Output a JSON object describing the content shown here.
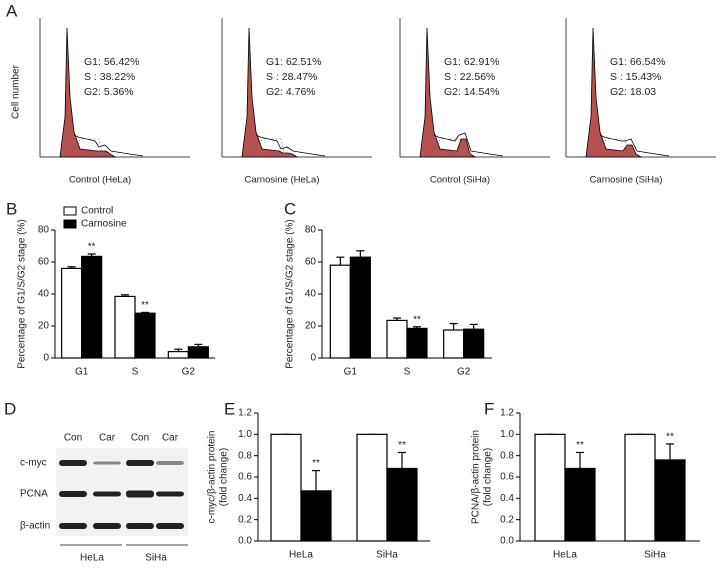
{
  "panel_a": {
    "label": "A",
    "y_label": "Cell number",
    "plots": [
      {
        "caption": "Control (HeLa)",
        "lines": [
          "G1: 56.42%",
          "S  : 38.22%",
          "G2: 5.36%"
        ]
      },
      {
        "caption": "Carnosine (HeLa)",
        "lines": [
          "G1: 62.51%",
          "S  : 28.47%",
          "G2: 4.76%"
        ]
      },
      {
        "caption": "Control (SiHa)",
        "lines": [
          "G1: 62.91%",
          "S  : 22.56%",
          "G2: 14.54%"
        ]
      },
      {
        "caption": "Carnosine (SiHa)",
        "lines": [
          "G1: 66.54%",
          "S  : 15.43%",
          "G2: 18.03"
        ]
      }
    ]
  },
  "panel_d": {
    "label": "D",
    "lanes": [
      "Con",
      "Car",
      "Con",
      "Car"
    ],
    "rows": [
      "c-myc",
      "PCNA",
      "β-actin"
    ],
    "groups": [
      "HeLa",
      "SiHa"
    ]
  },
  "chart_data": [
    {
      "type": "bar",
      "panel": "B",
      "y_label": [
        "Percentage of G1/S/G2 stage (%)"
      ],
      "categories": [
        "G1",
        "S",
        "G2"
      ],
      "ylim": [
        0,
        80
      ],
      "yticks": [
        0,
        20,
        40,
        60,
        80
      ],
      "legend": "top-left",
      "series": [
        {
          "name": "Control",
          "color": "#ffffff",
          "values": [
            56,
            38.5,
            4
          ],
          "errors": [
            1,
            1,
            1.5
          ],
          "significance": [
            null,
            null,
            null
          ]
        },
        {
          "name": "Carnosine",
          "color": "#000000",
          "values": [
            63.5,
            28,
            7
          ],
          "errors": [
            1.5,
            0.5,
            1.5
          ],
          "significance": [
            "**",
            "**",
            null
          ]
        }
      ]
    },
    {
      "type": "bar",
      "panel": "C",
      "y_label": [
        "Percentage of G1/S/G2 stage (%)"
      ],
      "categories": [
        "G1",
        "S",
        "G2"
      ],
      "ylim": [
        0,
        80
      ],
      "yticks": [
        0,
        20,
        40,
        60,
        80
      ],
      "series": [
        {
          "color": "#ffffff",
          "values": [
            58,
            23.5,
            17.5
          ],
          "errors": [
            5,
            1.5,
            4
          ],
          "significance": [
            null,
            null,
            null
          ]
        },
        {
          "color": "#000000",
          "values": [
            63,
            18.5,
            18
          ],
          "errors": [
            4,
            1,
            3
          ],
          "significance": [
            null,
            "**",
            null
          ]
        }
      ]
    },
    {
      "type": "bar",
      "panel": "E",
      "y_label": [
        "c-myc/β-actin protein",
        "(fold change)"
      ],
      "categories": [
        "HeLa",
        "SiHa"
      ],
      "ylim": [
        0,
        1.2
      ],
      "yticks": [
        {
          "value": 0,
          "label": "0.0"
        },
        {
          "value": 0.2,
          "label": "0.2"
        },
        {
          "value": 0.4,
          "label": "0.4"
        },
        {
          "value": 0.6,
          "label": "0.6"
        },
        {
          "value": 0.8,
          "label": "0.8"
        },
        {
          "value": 1,
          "label": "1.0"
        },
        {
          "value": 1.2,
          "label": "1.2"
        }
      ],
      "series": [
        {
          "color": "#ffffff",
          "values": [
            1,
            1
          ],
          "errors": [
            0,
            0
          ],
          "significance": [
            null,
            null
          ]
        },
        {
          "color": "#000000",
          "values": [
            0.47,
            0.68
          ],
          "errors": [
            0.19,
            0.15
          ],
          "significance": [
            "**",
            "**"
          ]
        }
      ]
    },
    {
      "type": "bar",
      "panel": "F",
      "y_label": [
        "PCNA/β-actin protein",
        "(fold change)"
      ],
      "categories": [
        "HeLa",
        "SiHa"
      ],
      "ylim": [
        0,
        1.2
      ],
      "yticks": [
        {
          "value": 0,
          "label": "0.0"
        },
        {
          "value": 0.2,
          "label": "0.2"
        },
        {
          "value": 0.4,
          "label": "0.4"
        },
        {
          "value": 0.6,
          "label": "0.6"
        },
        {
          "value": 0.8,
          "label": "0.8"
        },
        {
          "value": 1,
          "label": "1.0"
        },
        {
          "value": 1.2,
          "label": "1.2"
        }
      ],
      "series": [
        {
          "color": "#ffffff",
          "values": [
            1,
            1
          ],
          "errors": [
            0,
            0
          ],
          "significance": [
            null,
            null
          ]
        },
        {
          "color": "#000000",
          "values": [
            0.68,
            0.76
          ],
          "errors": [
            0.15,
            0.15
          ],
          "significance": [
            "**",
            "**"
          ]
        }
      ]
    }
  ]
}
